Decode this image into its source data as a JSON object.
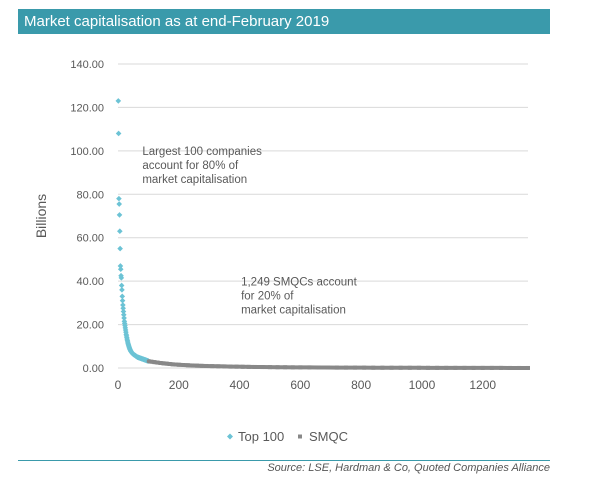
{
  "header": {
    "title": "Market capitalisation as at end-February 2019"
  },
  "source": "Source: LSE, Hardman & Co, Quoted Companies Alliance",
  "colors": {
    "title_bar": "#3a9aab",
    "top100": "#6cc3d5",
    "smqc": "#888888",
    "grid": "#d9d9d9",
    "axis_text": "#595959"
  },
  "chart_data": {
    "type": "scatter",
    "title": "",
    "xlabel": "",
    "ylabel": "Billions",
    "xlim": [
      0,
      1349
    ],
    "ylim": [
      0,
      140
    ],
    "x_ticks": [
      0,
      200,
      400,
      600,
      800,
      1000,
      1200
    ],
    "x_tick_labels": [
      "0",
      "200",
      "400",
      "600",
      "800",
      "1000",
      "1200"
    ],
    "y_ticks": [
      0,
      20,
      40,
      60,
      80,
      100,
      120,
      140
    ],
    "y_tick_labels": [
      "0.00",
      "20.00",
      "40.00",
      "60.00",
      "80.00",
      "100.00",
      "120.00",
      "140.00"
    ],
    "grid": "horizontal",
    "legend_position": "bottom",
    "series": [
      {
        "name": "Top 100",
        "marker": "diamond",
        "color": "#6cc3d5",
        "x": [
          1,
          2,
          3,
          4,
          5,
          6,
          7,
          8,
          9,
          10,
          11,
          12,
          13,
          14,
          15,
          16,
          17,
          18,
          19,
          20,
          21,
          22,
          23,
          24,
          25,
          26,
          27,
          28,
          29,
          30,
          31,
          32,
          33,
          34,
          35,
          36,
          37,
          38,
          39,
          40,
          41,
          42,
          43,
          44,
          45,
          46,
          47,
          48,
          49,
          50,
          51,
          52,
          53,
          54,
          55,
          56,
          57,
          58,
          59,
          60,
          61,
          62,
          63,
          64,
          65,
          66,
          67,
          68,
          69,
          70,
          71,
          72,
          73,
          74,
          75,
          76,
          77,
          78,
          79,
          80,
          81,
          82,
          83,
          84,
          85,
          86,
          87,
          88,
          89,
          90,
          91,
          92,
          93,
          94,
          95,
          96,
          97,
          98,
          99,
          100
        ],
        "y": [
          123.0,
          108.0,
          78.0,
          75.5,
          70.5,
          63.0,
          55.0,
          47.0,
          45.5,
          42.5,
          41.5,
          38.0,
          36.0,
          33.0,
          31.0,
          29.0,
          27.5,
          26.0,
          24.5,
          23.0,
          21.5,
          20.5,
          19.5,
          18.5,
          17.5,
          16.5,
          15.5,
          14.8,
          14.0,
          13.3,
          12.6,
          12.0,
          11.4,
          10.9,
          10.4,
          9.9,
          9.5,
          9.1,
          8.7,
          8.4,
          8.1,
          7.8,
          7.6,
          7.4,
          7.2,
          7.0,
          6.8,
          6.6,
          6.5,
          6.4,
          6.3,
          6.2,
          6.1,
          6.0,
          5.9,
          5.8,
          5.7,
          5.6,
          5.5,
          5.4,
          5.3,
          5.2,
          5.1,
          5.0,
          4.95,
          4.9,
          4.85,
          4.8,
          4.75,
          4.7,
          4.65,
          4.6,
          4.55,
          4.5,
          4.45,
          4.4,
          4.35,
          4.3,
          4.25,
          4.2,
          4.15,
          4.1,
          4.05,
          4.0,
          3.95,
          3.9,
          3.85,
          3.8,
          3.75,
          3.7,
          3.65,
          3.6,
          3.55,
          3.5,
          3.45,
          3.4,
          3.35,
          3.3,
          3.25,
          3.2
        ]
      },
      {
        "name": "SMQC",
        "marker": "square",
        "color": "#888888",
        "x": [
          101,
          110,
          120,
          130,
          140,
          150,
          160,
          170,
          180,
          190,
          200,
          215,
          230,
          245,
          260,
          275,
          290,
          310,
          330,
          350,
          370,
          390,
          410,
          430,
          450,
          475,
          500,
          525,
          550,
          575,
          600,
          630,
          660,
          690,
          720,
          750,
          780,
          810,
          840,
          870,
          900,
          930,
          960,
          990,
          1020,
          1050,
          1080,
          1110,
          1140,
          1170,
          1200,
          1230,
          1260,
          1290,
          1320,
          1349
        ],
        "y": [
          3.1,
          2.9,
          2.7,
          2.5,
          2.3,
          2.15,
          2.0,
          1.85,
          1.7,
          1.6,
          1.5,
          1.38,
          1.27,
          1.17,
          1.08,
          1.0,
          0.93,
          0.85,
          0.78,
          0.72,
          0.66,
          0.61,
          0.56,
          0.52,
          0.48,
          0.44,
          0.4,
          0.37,
          0.34,
          0.31,
          0.29,
          0.26,
          0.24,
          0.22,
          0.2,
          0.18,
          0.17,
          0.15,
          0.14,
          0.13,
          0.12,
          0.11,
          0.1,
          0.09,
          0.08,
          0.07,
          0.065,
          0.06,
          0.05,
          0.045,
          0.04,
          0.035,
          0.03,
          0.025,
          0.02,
          0.01
        ]
      }
    ],
    "annotations": [
      {
        "lines": [
          "Largest 100 companies",
          "account for 80% of",
          "market capitalisation"
        ],
        "x": 80,
        "y": 98
      },
      {
        "lines": [
          "1,249 SMQCs account",
          "for 20% of",
          "market capitalisation"
        ],
        "x": 405,
        "y": 38
      }
    ]
  }
}
